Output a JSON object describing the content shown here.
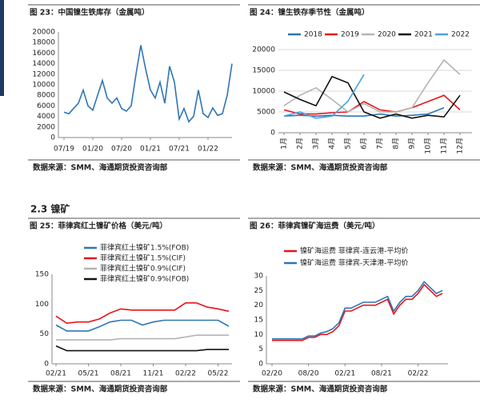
{
  "section": "2.3 镍矿",
  "chart_data": [
    {
      "type": "line",
      "title": "图 23：中国镍生铁库存（金属吨）",
      "source": "数据来源：SMM、海通期货投资咨询部",
      "categories": [
        "07/19",
        null,
        null,
        null,
        null,
        null,
        "01/20",
        null,
        null,
        null,
        null,
        null,
        "07/20",
        null,
        null,
        null,
        null,
        null,
        "01/21",
        null,
        null,
        null,
        null,
        null,
        "07/21",
        null,
        null,
        null,
        null,
        null,
        "01/22",
        null,
        null,
        null,
        null,
        null
      ],
      "series": [
        {
          "name": null,
          "color": "#2e75b6",
          "values": [
            4800,
            4500,
            5500,
            6500,
            9000,
            6000,
            5200,
            8000,
            10800,
            7500,
            6500,
            7500,
            5500,
            5000,
            6000,
            12000,
            17500,
            13000,
            9000,
            7500,
            10500,
            6500,
            13500,
            10500,
            3500,
            5500,
            3000,
            4000,
            9000,
            4500,
            3800,
            5600,
            4200,
            4500,
            8000,
            14000
          ]
        }
      ],
      "ylim": [
        0,
        20000
      ],
      "yticks": [
        0,
        2000,
        4000,
        6000,
        8000,
        10000,
        12000,
        14000,
        16000,
        18000,
        20000
      ],
      "grid": false
    },
    {
      "type": "line",
      "title": "图 24：镍生铁存季节性（金属吨）",
      "source": "数据来源：SMM、海通期货投资咨询部",
      "categories": [
        "1月",
        "2月",
        "3月",
        "4月",
        "5月",
        "6月",
        "7月",
        "8月",
        "9月",
        "10月",
        "11月",
        "12月"
      ],
      "series": [
        {
          "name": "2018",
          "color": "#2e75b6",
          "values": [
            4000,
            4200,
            4000,
            4200,
            4000,
            4000,
            4500,
            4000,
            4200,
            4500,
            6000,
            null
          ]
        },
        {
          "name": "2019",
          "color": "#e8141b",
          "values": [
            5500,
            4500,
            4500,
            4800,
            5000,
            7500,
            5500,
            5000,
            6000,
            7500,
            9000,
            5500
          ]
        },
        {
          "name": "2020",
          "color": "#b4b4b4",
          "values": [
            6500,
            9000,
            10800,
            8000,
            5000,
            7000,
            5000,
            5000,
            6000,
            12000,
            17500,
            14000
          ]
        },
        {
          "name": "2021",
          "color": "#111111",
          "values": [
            9800,
            8000,
            6500,
            13500,
            12000,
            5000,
            3500,
            4500,
            3500,
            4200,
            3800,
            9000
          ]
        },
        {
          "name": "2022",
          "color": "#4aa3df",
          "values": [
            4000,
            5000,
            3500,
            4000,
            7600,
            14000,
            null,
            null,
            null,
            null,
            null,
            null
          ]
        }
      ],
      "ylim": [
        0,
        20000
      ],
      "yticks": [
        0,
        5000,
        10000,
        15000,
        20000
      ],
      "grid": true,
      "legend": "top"
    },
    {
      "type": "line",
      "title": "图 25：菲律宾红土镍矿价格（美元/吨）",
      "source": "数据来源：SMM、海通期货投资咨询部",
      "categories": [
        "02/21",
        null,
        null,
        "05/21",
        null,
        null,
        "08/21",
        null,
        null,
        "11/21",
        null,
        null,
        "02/22",
        null,
        null,
        "05/22",
        null
      ],
      "series": [
        {
          "name": "菲律宾红土镍矿1.5%(FOB)",
          "color": "#2e75b6",
          "values": [
            65,
            55,
            55,
            55,
            62,
            70,
            73,
            73,
            65,
            70,
            73,
            73,
            73,
            73,
            73,
            73,
            63
          ]
        },
        {
          "name": "菲律宾红土镍矿1.5%(CIF)",
          "color": "#e8141b",
          "values": [
            80,
            68,
            70,
            70,
            75,
            85,
            92,
            90,
            90,
            90,
            90,
            90,
            102,
            102,
            95,
            92,
            88
          ]
        },
        {
          "name": "菲律宾红土镍矿0.9%(CIF)",
          "color": "#b4b4b4",
          "values": [
            40,
            40,
            40,
            40,
            40,
            40,
            42,
            42,
            42,
            42,
            42,
            42,
            45,
            48,
            48,
            48,
            48
          ]
        },
        {
          "name": "菲律宾红土镍矿0.9%(FOB)",
          "color": "#111111",
          "values": [
            30,
            22,
            22,
            22,
            22,
            22,
            22,
            22,
            22,
            22,
            22,
            22,
            22,
            22,
            24,
            24,
            24
          ]
        }
      ],
      "ylim": [
        0,
        150
      ],
      "yticks": [
        0,
        50,
        100,
        150
      ],
      "grid": false,
      "legend": "top-left"
    },
    {
      "type": "line",
      "title": "图 26：菲律宾镍矿海运费（美元/吨）",
      "source": "数据来源：SMM、海通期货投资咨询部",
      "categories": [
        "02/20",
        null,
        null,
        null,
        null,
        null,
        "08/20",
        null,
        null,
        null,
        null,
        null,
        "02/21",
        null,
        null,
        null,
        null,
        null,
        "08/21",
        null,
        null,
        null,
        null,
        null,
        "02/22",
        null,
        null,
        null,
        null
      ],
      "series": [
        {
          "name": "镍矿海运费 菲律宾-连云港-平均价",
          "color": "#e8141b",
          "values": [
            8,
            8,
            8,
            8,
            8,
            8,
            9,
            9,
            10,
            10,
            11,
            13,
            18,
            18,
            19,
            20,
            20,
            20,
            21,
            22,
            17,
            20,
            22,
            22,
            24,
            27,
            25,
            23,
            24
          ]
        },
        {
          "name": "镍矿海运费 菲律宾-天津港-平均价",
          "color": "#2e75b6",
          "values": [
            8.5,
            8.5,
            8.5,
            8.5,
            8.5,
            8.5,
            9.5,
            9.5,
            10.5,
            11,
            12,
            14,
            19,
            19,
            20,
            21,
            21,
            21,
            22,
            23,
            18,
            21,
            23,
            23,
            25,
            28,
            26,
            24,
            25
          ]
        }
      ],
      "ylim": [
        0,
        30
      ],
      "yticks": [
        0,
        5,
        10,
        15,
        20,
        25,
        30
      ],
      "grid": false,
      "legend": "top-left"
    }
  ]
}
